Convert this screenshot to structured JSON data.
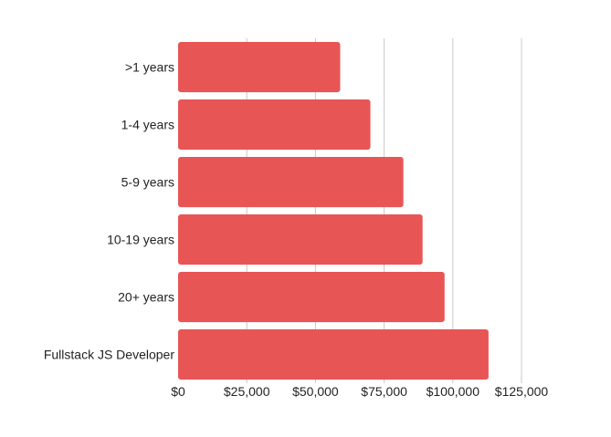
{
  "chart_data": {
    "type": "bar",
    "orientation": "horizontal",
    "categories": [
      ">1 years",
      "1-4 years",
      "5-9 years",
      "10-19 years",
      "20+ years",
      "Fullstack JS Developer"
    ],
    "values": [
      59000,
      70000,
      82000,
      89000,
      97000,
      113000
    ],
    "title": "",
    "xlabel": "",
    "ylabel": "",
    "xlim": [
      0,
      125000
    ],
    "x_ticks": [
      0,
      25000,
      50000,
      75000,
      100000,
      125000
    ],
    "x_tick_labels": [
      "$0",
      "$25,000",
      "$50,000",
      "$75,000",
      "$100,000",
      "$125,000"
    ],
    "grid": "vertical",
    "legend": "none",
    "bar_color": "#e85555",
    "grid_color": "#c8c8c8"
  }
}
